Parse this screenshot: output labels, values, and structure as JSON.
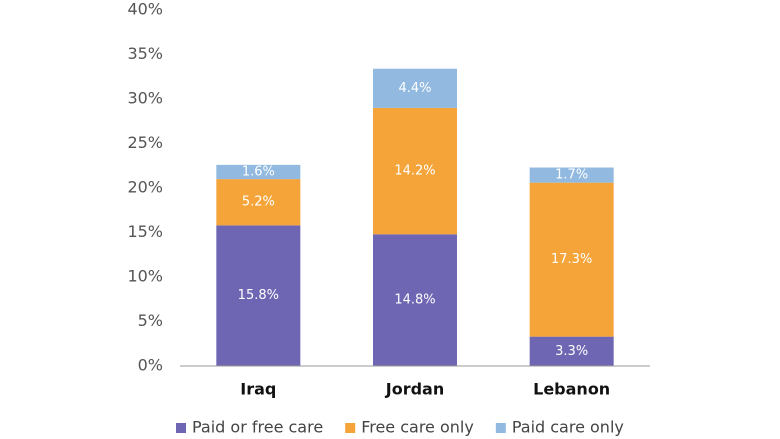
{
  "chart_data": {
    "type": "stacked_bar",
    "categories": [
      "Iraq",
      "Jordan",
      "Lebanon"
    ],
    "series": [
      {
        "name": "Paid or free care",
        "color": "#6e66b2",
        "values": [
          15.8,
          14.8,
          3.3
        ],
        "value_labels": [
          "15.8%",
          "14.8%",
          "3.3%"
        ]
      },
      {
        "name": "Free care only",
        "color": "#f5a43a",
        "values": [
          5.2,
          14.2,
          17.3
        ],
        "value_labels": [
          "5.2%",
          "14.2%",
          "17.3%"
        ]
      },
      {
        "name": "Paid care only",
        "color": "#92b9e0",
        "values": [
          1.6,
          4.4,
          1.7
        ],
        "value_labels": [
          "1.6%",
          "4.4%",
          "1.7%"
        ]
      }
    ],
    "ylim": [
      0,
      40
    ],
    "yticks": [
      {
        "value": 0,
        "label": "0%"
      },
      {
        "value": 5,
        "label": "5%"
      },
      {
        "value": 10,
        "label": "10%"
      },
      {
        "value": 15,
        "label": "15%"
      },
      {
        "value": 20,
        "label": "20%"
      },
      {
        "value": 25,
        "label": "25%"
      },
      {
        "value": 30,
        "label": "30%"
      },
      {
        "value": 35,
        "label": "35%"
      },
      {
        "value": 40,
        "label": "40%"
      }
    ],
    "legend": "bottom"
  }
}
